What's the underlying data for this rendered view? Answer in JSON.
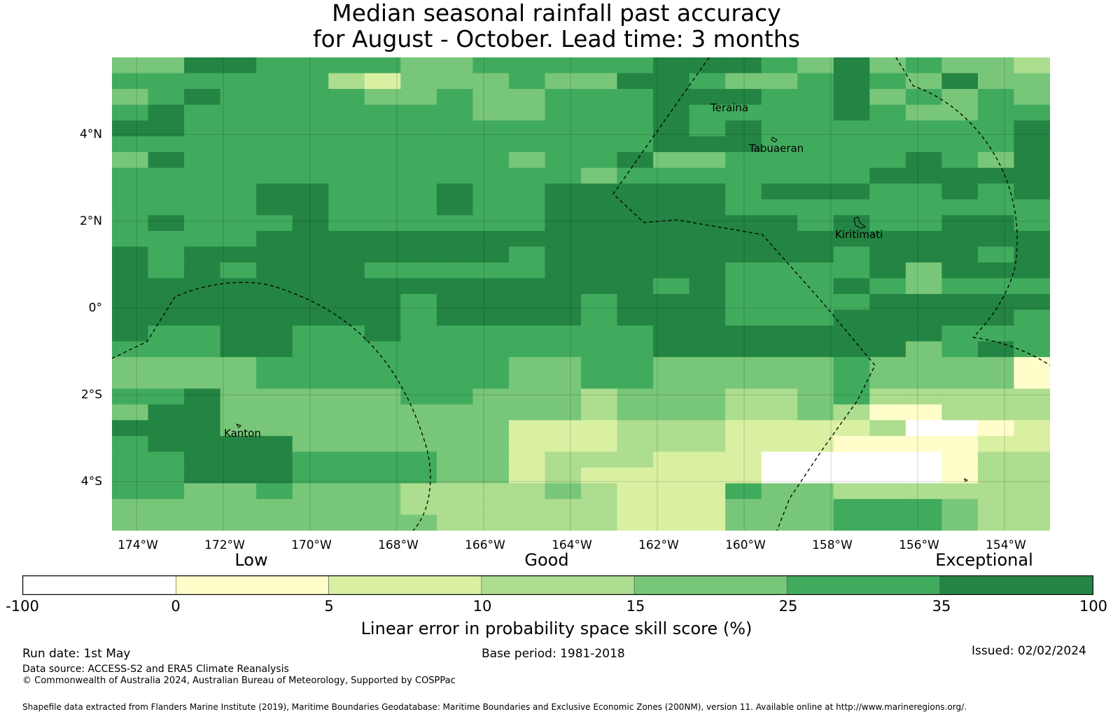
{
  "title": {
    "line1": "Median seasonal rainfall past accuracy",
    "line2": "for August - October. Lead time: 3 months"
  },
  "map": {
    "lat_labels": [
      "4°N",
      "2°N",
      "0°",
      "2°S",
      "4°S"
    ],
    "lon_labels": [
      "174°W",
      "172°W",
      "170°W",
      "168°W",
      "166°W",
      "164°W",
      "162°W",
      "160°W",
      "158°W",
      "156°W",
      "154°W"
    ],
    "place_names": {
      "teraina": "Teraina",
      "tabuaeran": "Tabuaeran",
      "kiritimati": "Kiritimati",
      "kanton": "Kanton"
    },
    "skill_grid": [
      "44665555445555566654645443",
      "55555532444544665445654644",
      "45655554454455566655645454",
      "56555555554455565555654455",
      "66555555555555565655555556",
      "55555555555555566655555556",
      "46555555555455644555556546",
      "55555555555554555555566666",
      "55556655565566666566655656",
      "55556655565566666555555555",
      "56555655555566666665655665",
      "55556666666666666666666666",
      "65666666666566666666566656",
      "65656665555566666555564666",
      "66666666666666656555654555",
      "66666666566665666555566666",
      "66666666566665666555666665",
      "65566556555555566666666555",
      "55566555555555566666664565",
      "44445555555445544444544441",
      "44445555555445544444544441",
      "55644444554443444334533333",
      "46644444444443444334311333",
      "66644444444222333222230012",
      "56666444444222333222111122",
      "55666555544233322200000133",
      "55666555544232222200000133",
      "55445444333343222544333333",
      "44444444333333222444555433",
      "44444444433333222444555433"
    ],
    "colors": {
      "lt_0": "#ffffff",
      "0_5": "#fffdca",
      "5_10": "#d9f0a3",
      "10_15": "#addd8e",
      "15_25": "#78c679",
      "25_35": "#41ab5d",
      "35_100": "#238443"
    }
  },
  "colorbar": {
    "level_labels": [
      "Low",
      "Good",
      "Exceptional"
    ],
    "ticks": [
      "-100",
      "0",
      "5",
      "10",
      "15",
      "25",
      "35",
      "100"
    ],
    "xlabel": "Linear error in probability space skill score (%)"
  },
  "footer": {
    "run_date": "Run date: 1st May",
    "base_period": "Base period: 1981-2018",
    "issued": "Issued: 02/02/2024",
    "data_source": "Data source: ACCESS-S2 and ERA5 Climate Reanalysis",
    "copyright": "© Commonwealth of Australia 2024, Australian Bureau of Meteorology, Supported by COSPPac",
    "shapefile": "Shapefile data extracted from Flanders Marine Institute (2019), Maritime Boundaries Geodatabase: Maritime Boundaries and Exclusive Economic Zones (200NM), version 11. Available online at http://www.marineregions.org/."
  }
}
